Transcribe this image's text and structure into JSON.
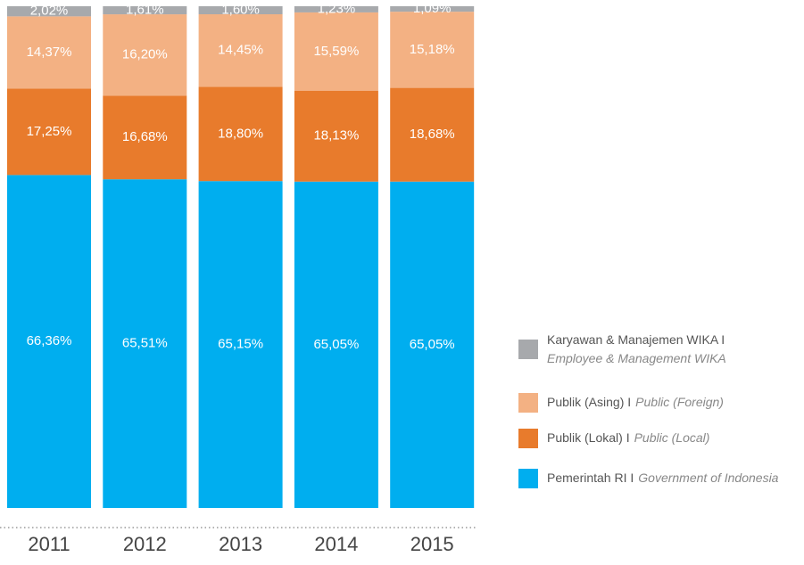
{
  "chart_data": {
    "type": "stacked_bar",
    "categories": [
      "2011",
      "2012",
      "2013",
      "2014",
      "2015"
    ],
    "highlight_category": "2015",
    "highlight_color": "#00aeef",
    "ylim": [
      0,
      100
    ],
    "series": [
      {
        "name": "Pemerintah RI I",
        "name_en": "Government of Indonesia",
        "color": "#00aeef",
        "values": [
          66.36,
          65.51,
          65.15,
          65.05,
          65.05
        ],
        "value_labels": [
          "66,36%",
          "65,51%",
          "65,15%",
          "65,05%",
          "65,05%"
        ]
      },
      {
        "name": "Publik (Lokal) I",
        "name_en": "Public (Local)",
        "color": "#e87b2c",
        "values": [
          17.25,
          16.68,
          18.8,
          18.13,
          18.68
        ],
        "value_labels": [
          "17,25%",
          "16,68%",
          "18,80%",
          "18,13%",
          "18,68%"
        ]
      },
      {
        "name": "Publik (Asing) I",
        "name_en": "Public (Foreign)",
        "color": "#f3b183",
        "values": [
          14.37,
          16.2,
          14.45,
          15.59,
          15.18
        ],
        "value_labels": [
          "14,37%",
          "16,20%",
          "14,45%",
          "15,59%",
          "15,18%"
        ]
      },
      {
        "name": "Karyawan & Manajemen WIKA I",
        "name_en": "Employee & Management WIKA",
        "color": "#a7a9ac",
        "values": [
          2.02,
          1.61,
          1.6,
          1.23,
          1.09
        ],
        "value_labels": [
          "2,02%",
          "1,61%",
          "1,60%",
          "1,23%",
          "1,09%"
        ]
      }
    ]
  }
}
